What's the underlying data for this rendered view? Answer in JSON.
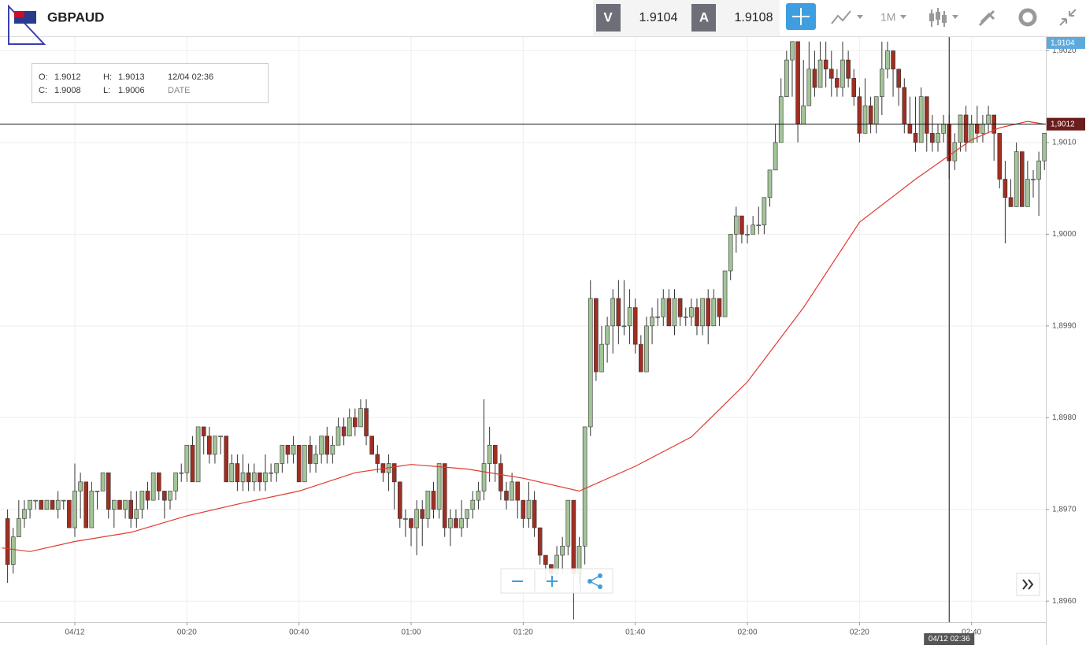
{
  "header": {
    "symbol": "GBPAUD",
    "sell_label": "V",
    "sell_price": "1.9104",
    "buy_label": "A",
    "buy_price": "1.9108",
    "timeframe": "1M"
  },
  "info_box": {
    "open_label": "O:",
    "open": "1.9012",
    "high_label": "H:",
    "high": "1.9013",
    "date": "12/04 02:36",
    "close_label": "C:",
    "close": "1.9008",
    "low_label": "L:",
    "low": "1.9006",
    "date_label": "DATE"
  },
  "chart_data": {
    "type": "candlestick",
    "x": [
      -12,
      -11,
      -10,
      -9,
      -8,
      -7,
      -6,
      -5,
      -4,
      -3,
      -2,
      -1,
      0,
      1,
      2,
      3,
      4,
      5,
      6,
      7,
      8,
      9,
      10,
      11,
      12,
      13,
      14,
      15,
      16,
      17,
      18,
      19,
      20,
      21,
      22,
      23,
      24,
      25,
      26,
      27,
      28,
      29,
      30,
      31,
      32,
      33,
      34,
      35,
      36,
      37,
      38,
      39,
      40,
      41,
      42,
      43,
      44,
      45,
      46,
      47,
      48,
      49,
      50,
      51,
      52,
      53,
      54,
      55,
      56,
      57,
      58,
      59,
      60,
      61,
      62,
      63,
      64,
      65,
      66,
      67,
      68,
      69,
      70,
      71,
      72,
      73,
      74,
      75,
      76,
      77,
      78,
      79,
      80,
      81,
      82,
      83,
      84,
      85,
      86,
      87,
      88,
      89,
      90,
      91,
      92,
      93,
      94,
      95,
      96,
      97,
      98,
      99,
      100,
      101,
      102,
      103,
      104,
      105,
      106,
      107,
      108,
      109,
      110,
      111,
      112,
      113,
      114,
      115,
      116,
      117,
      118,
      119,
      120,
      121,
      122,
      123,
      124,
      125,
      126,
      127,
      128,
      129,
      130,
      131,
      132,
      133,
      134,
      135,
      136,
      137,
      138,
      139,
      140,
      141,
      142,
      143,
      144,
      145,
      146,
      147,
      148,
      149,
      150,
      151,
      152,
      153,
      154,
      155,
      156,
      157,
      158,
      159,
      160,
      161,
      162,
      163,
      164,
      165,
      166,
      167,
      168,
      169,
      170,
      171,
      172,
      173
    ],
    "open": [
      1.8969,
      1.8964,
      1.8967,
      1.8969,
      1.897,
      1.8971,
      1.8971,
      1.897,
      1.8971,
      1.897,
      1.8971,
      1.8971,
      1.8968,
      1.8972,
      1.8973,
      1.8968,
      1.8972,
      1.8972,
      1.8974,
      1.897,
      1.8971,
      1.897,
      1.8971,
      1.8969,
      1.897,
      1.8972,
      1.8971,
      1.8974,
      1.8972,
      1.8971,
      1.8972,
      1.8974,
      1.8974,
      1.8977,
      1.8973,
      1.8979,
      1.8978,
      1.8976,
      1.8978,
      1.8978,
      1.8973,
      1.8975,
      1.8973,
      1.8974,
      1.8973,
      1.8974,
      1.8973,
      1.8974,
      1.8974,
      1.8975,
      1.8977,
      1.8976,
      1.8977,
      1.8973,
      1.8977,
      1.8975,
      1.8976,
      1.8978,
      1.8976,
      1.8977,
      1.8979,
      1.8978,
      1.898,
      1.8979,
      1.8981,
      1.8978,
      1.8976,
      1.8975,
      1.8974,
      1.8975,
      1.8973,
      1.8969,
      1.8969,
      1.8968,
      1.897,
      1.8969,
      1.8972,
      1.897,
      1.8975,
      1.8968,
      1.8969,
      1.8968,
      1.8969,
      1.897,
      1.8971,
      1.8972,
      1.8975,
      1.8977,
      1.8975,
      1.8972,
      1.8971,
      1.8973,
      1.8971,
      1.8969,
      1.8971,
      1.8968,
      1.8965,
      1.8964,
      1.8963,
      1.8965,
      1.8966,
      1.8971,
      1.8963,
      1.8966,
      1.8979,
      1.8993,
      1.8985,
      1.8988,
      1.899,
      1.8993,
      1.899,
      1.899,
      1.8992,
      1.8988,
      1.8985,
      1.899,
      1.8991,
      1.8991,
      1.8993,
      1.899,
      1.8993,
      1.8991,
      1.8991,
      1.8992,
      1.899,
      1.8993,
      1.899,
      1.8993,
      1.8991,
      1.8996,
      1.9,
      1.9002,
      1.9,
      1.9,
      1.9001,
      1.9001,
      1.9004,
      1.9007,
      1.901,
      1.9015,
      1.9019,
      1.9021,
      1.9012,
      1.9014,
      1.9018,
      1.9016,
      1.9019,
      1.9018,
      1.9017,
      1.9016,
      1.9019,
      1.9017,
      1.9015,
      1.9011,
      1.9014,
      1.9012,
      1.9015,
      1.9018,
      1.902,
      1.9018,
      1.9016,
      1.9012,
      1.9011,
      1.901,
      1.9015,
      1.9011,
      1.901,
      1.9011,
      1.9012,
      1.9008,
      1.901,
      1.9013,
      1.901,
      1.9012,
      1.9011,
      1.9012,
      1.9013,
      1.9011,
      1.9006,
      1.9004,
      1.9003,
      1.9009,
      1.9003,
      1.9006,
      1.9006,
      1.9008
    ],
    "high": [
      1.897,
      1.8968,
      1.8971,
      1.8971,
      1.8971,
      1.8971,
      1.8971,
      1.8971,
      1.8971,
      1.8972,
      1.8971,
      1.8971,
      1.8975,
      1.8974,
      1.8973,
      1.8973,
      1.8972,
      1.8974,
      1.8974,
      1.8971,
      1.8971,
      1.8971,
      1.8972,
      1.8972,
      1.8972,
      1.8973,
      1.8974,
      1.8974,
      1.8972,
      1.8972,
      1.8974,
      1.8975,
      1.8977,
      1.8978,
      1.8979,
      1.8979,
      1.8979,
      1.8978,
      1.8978,
      1.8978,
      1.8976,
      1.8976,
      1.8976,
      1.8975,
      1.8975,
      1.8974,
      1.8976,
      1.8975,
      1.8975,
      1.8977,
      1.8977,
      1.8978,
      1.8977,
      1.8977,
      1.8978,
      1.8977,
      1.8978,
      1.8979,
      1.8978,
      1.898,
      1.898,
      1.8981,
      1.8981,
      1.8982,
      1.8982,
      1.8978,
      1.8977,
      1.8975,
      1.8976,
      1.8975,
      1.8973,
      1.897,
      1.8969,
      1.8971,
      1.8971,
      1.8972,
      1.8973,
      1.8975,
      1.8975,
      1.897,
      1.897,
      1.8971,
      1.897,
      1.8972,
      1.8973,
      1.8982,
      1.8979,
      1.8977,
      1.8976,
      1.8973,
      1.8974,
      1.8973,
      1.8971,
      1.8973,
      1.8972,
      1.8968,
      1.8965,
      1.8964,
      1.8966,
      1.8967,
      1.8971,
      1.8971,
      1.8967,
      1.8979,
      1.8995,
      1.8993,
      1.899,
      1.8991,
      1.8994,
      1.8995,
      1.8995,
      1.8994,
      1.8993,
      1.8989,
      1.8991,
      1.8992,
      1.8993,
      1.8994,
      1.8994,
      1.8994,
      1.8993,
      1.8992,
      1.8993,
      1.8993,
      1.8993,
      1.8994,
      1.8994,
      1.8993,
      1.8996,
      1.9,
      1.9003,
      1.9002,
      1.9001,
      1.9002,
      1.9003,
      1.9004,
      1.9007,
      1.9012,
      1.9017,
      1.902,
      1.9021,
      1.9021,
      1.9019,
      1.9021,
      1.902,
      1.9021,
      1.9021,
      1.902,
      1.9018,
      1.9021,
      1.902,
      1.9018,
      1.9016,
      1.9017,
      1.9015,
      1.9015,
      1.9021,
      1.9021,
      1.902,
      1.9018,
      1.9017,
      1.9015,
      1.9015,
      1.9016,
      1.9015,
      1.9013,
      1.9012,
      1.9013,
      1.9013,
      1.9011,
      1.9013,
      1.9014,
      1.9013,
      1.9014,
      1.9013,
      1.9014,
      1.9013,
      1.9011,
      1.9008,
      1.9006,
      1.901,
      1.9009,
      1.9008,
      1.9007,
      1.9009,
      1.9011
    ],
    "low": [
      1.8962,
      1.8963,
      1.8967,
      1.8968,
      1.8969,
      1.897,
      1.897,
      1.897,
      1.897,
      1.8969,
      1.897,
      1.8968,
      1.8967,
      1.8969,
      1.8968,
      1.8968,
      1.897,
      1.8972,
      1.8969,
      1.8968,
      1.897,
      1.8969,
      1.8968,
      1.8968,
      1.8969,
      1.897,
      1.8971,
      1.8971,
      1.8969,
      1.897,
      1.8971,
      1.8973,
      1.8973,
      1.8973,
      1.8973,
      1.8976,
      1.8975,
      1.8975,
      1.8976,
      1.8973,
      1.8973,
      1.8972,
      1.8972,
      1.8972,
      1.8972,
      1.8972,
      1.8972,
      1.8973,
      1.8973,
      1.8974,
      1.8975,
      1.8975,
      1.8973,
      1.8973,
      1.8974,
      1.8974,
      1.8975,
      1.8975,
      1.8975,
      1.8977,
      1.8977,
      1.8978,
      1.8978,
      1.8979,
      1.8977,
      1.8976,
      1.8974,
      1.8973,
      1.8972,
      1.897,
      1.8968,
      1.8967,
      1.8966,
      1.8965,
      1.8966,
      1.8968,
      1.8969,
      1.8969,
      1.8967,
      1.8966,
      1.8968,
      1.8967,
      1.8968,
      1.8969,
      1.897,
      1.8971,
      1.8973,
      1.8973,
      1.8971,
      1.897,
      1.8971,
      1.8969,
      1.8968,
      1.8968,
      1.8967,
      1.8964,
      1.8962,
      1.8962,
      1.8962,
      1.8963,
      1.8965,
      1.8958,
      1.8962,
      1.8964,
      1.8978,
      1.8984,
      1.8985,
      1.8986,
      1.8987,
      1.8988,
      1.8989,
      1.8988,
      1.8987,
      1.8985,
      1.8985,
      1.8988,
      1.899,
      1.899,
      1.899,
      1.8989,
      1.899,
      1.899,
      1.899,
      1.8989,
      1.8989,
      1.8988,
      1.899,
      1.899,
      1.8991,
      1.8995,
      1.8998,
      1.8999,
      1.8999,
      1.9,
      1.9,
      1.9,
      1.9003,
      1.9007,
      1.901,
      1.9015,
      1.9015,
      1.901,
      1.9012,
      1.9014,
      1.9015,
      1.9016,
      1.9016,
      1.9015,
      1.9015,
      1.9015,
      1.9016,
      1.9014,
      1.901,
      1.9011,
      1.9011,
      1.9011,
      1.9013,
      1.9017,
      1.9015,
      1.9014,
      1.9011,
      1.9011,
      1.9009,
      1.901,
      1.9009,
      1.9009,
      1.9009,
      1.901,
      1.9006,
      1.9007,
      1.9009,
      1.9009,
      1.901,
      1.901,
      1.901,
      1.9011,
      1.9008,
      1.9005,
      1.8999,
      1.9003,
      1.9003,
      1.9003,
      1.9003,
      1.9004,
      1.9002,
      1.9007
    ],
    "close": [
      1.8964,
      1.8967,
      1.8969,
      1.897,
      1.8971,
      1.8971,
      1.897,
      1.8971,
      1.897,
      1.8971,
      1.8971,
      1.8968,
      1.8972,
      1.8973,
      1.8968,
      1.8972,
      1.8972,
      1.8974,
      1.897,
      1.8971,
      1.897,
      1.8971,
      1.8969,
      1.897,
      1.8972,
      1.8971,
      1.8974,
      1.8972,
      1.8971,
      1.8972,
      1.8974,
      1.8974,
      1.8977,
      1.8973,
      1.8979,
      1.8978,
      1.8976,
      1.8978,
      1.8978,
      1.8973,
      1.8975,
      1.8973,
      1.8974,
      1.8973,
      1.8974,
      1.8973,
      1.8974,
      1.8974,
      1.8975,
      1.8977,
      1.8976,
      1.8977,
      1.8973,
      1.8977,
      1.8975,
      1.8976,
      1.8978,
      1.8976,
      1.8977,
      1.8979,
      1.8978,
      1.898,
      1.8979,
      1.8981,
      1.8978,
      1.8976,
      1.8975,
      1.8974,
      1.8975,
      1.8973,
      1.8969,
      1.8969,
      1.8968,
      1.897,
      1.8969,
      1.8972,
      1.897,
      1.8975,
      1.8968,
      1.8969,
      1.8968,
      1.8969,
      1.897,
      1.8971,
      1.8972,
      1.8975,
      1.8977,
      1.8975,
      1.8972,
      1.8971,
      1.8973,
      1.8971,
      1.8969,
      1.8971,
      1.8968,
      1.8965,
      1.8964,
      1.8963,
      1.8965,
      1.8966,
      1.8971,
      1.8963,
      1.8966,
      1.8979,
      1.8993,
      1.8985,
      1.8988,
      1.899,
      1.8993,
      1.899,
      1.899,
      1.8992,
      1.8988,
      1.8985,
      1.899,
      1.8991,
      1.8991,
      1.8993,
      1.899,
      1.8993,
      1.8991,
      1.8991,
      1.8992,
      1.899,
      1.8993,
      1.899,
      1.8993,
      1.8991,
      1.8996,
      1.9,
      1.9002,
      1.9,
      1.9,
      1.9001,
      1.9001,
      1.9004,
      1.9007,
      1.901,
      1.9015,
      1.9019,
      1.9021,
      1.9012,
      1.9014,
      1.9018,
      1.9016,
      1.9019,
      1.9018,
      1.9017,
      1.9016,
      1.9019,
      1.9017,
      1.9015,
      1.9011,
      1.9014,
      1.9012,
      1.9015,
      1.9018,
      1.902,
      1.9018,
      1.9016,
      1.9012,
      1.9011,
      1.901,
      1.9015,
      1.9011,
      1.901,
      1.9011,
      1.9012,
      1.9008,
      1.901,
      1.9013,
      1.901,
      1.9012,
      1.9011,
      1.9012,
      1.9013,
      1.9011,
      1.9006,
      1.9004,
      1.9003,
      1.9009,
      1.9003,
      1.9006,
      1.9006,
      1.9008,
      1.9011
    ],
    "up_color": "#a3c497",
    "down_color": "#9e2f22",
    "ma": {
      "color": "#e03a2f",
      "x": [
        -13,
        -8,
        0,
        10,
        20,
        30,
        40,
        50,
        60,
        70,
        80,
        90,
        100,
        110,
        120,
        130,
        140,
        150,
        160,
        165,
        170,
        173
      ],
      "values": [
        1.89658,
        1.89654,
        1.89665,
        1.89675,
        1.89693,
        1.89707,
        1.8972,
        1.8974,
        1.89749,
        1.89744,
        1.89734,
        1.8972,
        1.89747,
        1.89779,
        1.89839,
        1.8992,
        1.90013,
        1.9006,
        1.90103,
        1.90116,
        1.90123,
        1.9012
      ]
    },
    "xlim": [
      -13.35,
      173.25
    ],
    "xticks": [
      {
        "value": 0,
        "label": "04/12"
      },
      {
        "value": 20,
        "label": "00:20"
      },
      {
        "value": 40,
        "label": "00:40"
      },
      {
        "value": 60,
        "label": "01:00"
      },
      {
        "value": 80,
        "label": "01:20"
      },
      {
        "value": 100,
        "label": "01:40"
      },
      {
        "value": 120,
        "label": "02:00"
      },
      {
        "value": 140,
        "label": "02:20"
      },
      {
        "value": 160,
        "label": "02:40"
      }
    ],
    "ylim": [
      1.89577,
      1.90215
    ],
    "yticks": [
      {
        "value": 1.896,
        "label": "1,8960"
      },
      {
        "value": 1.897,
        "label": "1,8970"
      },
      {
        "value": 1.898,
        "label": "1,8980"
      },
      {
        "value": 1.899,
        "label": "1,8990"
      },
      {
        "value": 1.9,
        "label": "1,9000"
      },
      {
        "value": 1.901,
        "label": "1,9010"
      },
      {
        "value": 1.902,
        "label": "1,9020"
      }
    ],
    "grid": true,
    "price_line": {
      "value": 1.9012,
      "label": "1,9012"
    },
    "top_marker": "1,9104",
    "crosshair": {
      "x": 156,
      "label": "04/12 02:36"
    }
  }
}
